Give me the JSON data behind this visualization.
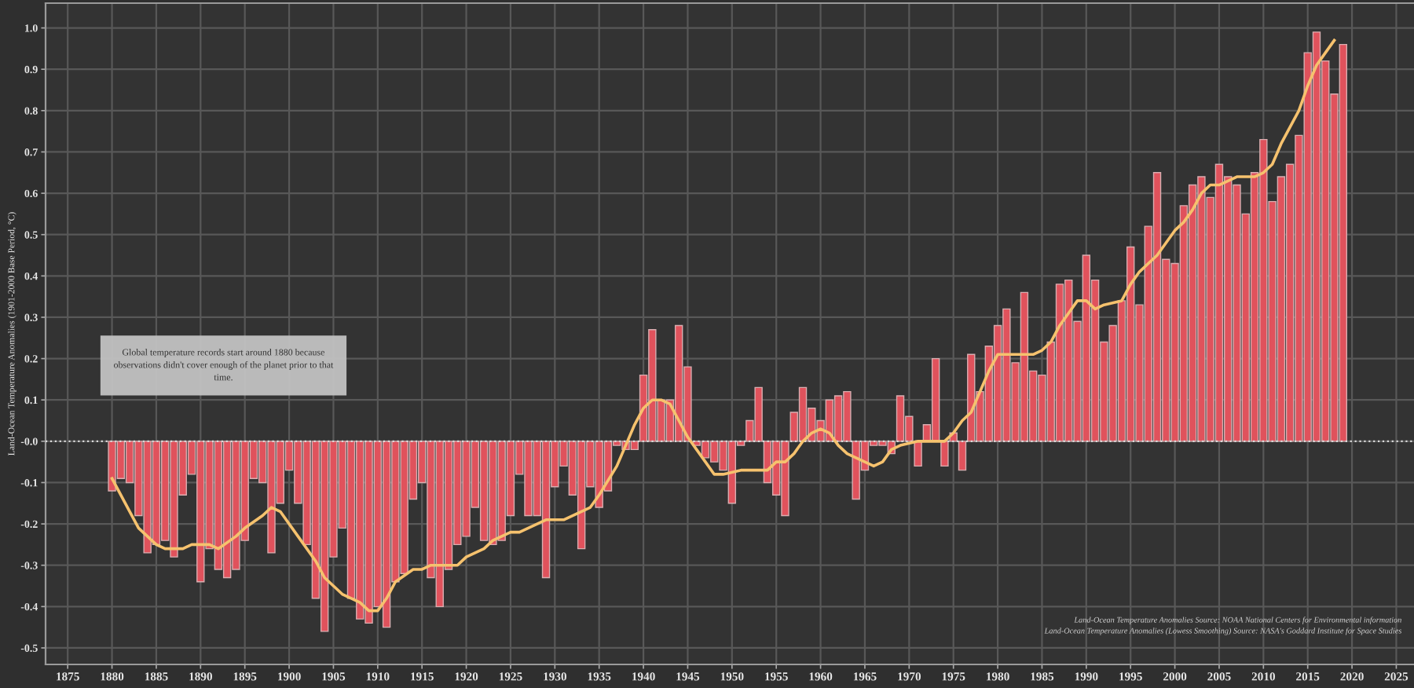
{
  "chart_data": {
    "type": "bar",
    "ylabel": "Land-Ocean Temperature Anomalies (1901-2000 Base Period, °C)",
    "x": [
      1880,
      1881,
      1882,
      1883,
      1884,
      1885,
      1886,
      1887,
      1888,
      1889,
      1890,
      1891,
      1892,
      1893,
      1894,
      1895,
      1896,
      1897,
      1898,
      1899,
      1900,
      1901,
      1902,
      1903,
      1904,
      1905,
      1906,
      1907,
      1908,
      1909,
      1910,
      1911,
      1912,
      1913,
      1914,
      1915,
      1916,
      1917,
      1918,
      1919,
      1920,
      1921,
      1922,
      1923,
      1924,
      1925,
      1926,
      1927,
      1928,
      1929,
      1930,
      1931,
      1932,
      1933,
      1934,
      1935,
      1936,
      1937,
      1938,
      1939,
      1940,
      1941,
      1942,
      1943,
      1944,
      1945,
      1946,
      1947,
      1948,
      1949,
      1950,
      1951,
      1952,
      1953,
      1954,
      1955,
      1956,
      1957,
      1958,
      1959,
      1960,
      1961,
      1962,
      1963,
      1964,
      1965,
      1966,
      1967,
      1968,
      1969,
      1970,
      1971,
      1972,
      1973,
      1974,
      1975,
      1976,
      1977,
      1978,
      1979,
      1980,
      1981,
      1982,
      1983,
      1984,
      1985,
      1986,
      1987,
      1988,
      1989,
      1990,
      1991,
      1992,
      1993,
      1994,
      1995,
      1996,
      1997,
      1998,
      1999,
      2000,
      2001,
      2002,
      2003,
      2004,
      2005,
      2006,
      2007,
      2008,
      2009,
      2010,
      2011,
      2012,
      2013,
      2014,
      2015,
      2016,
      2017,
      2018,
      2019
    ],
    "series": [
      {
        "color": "#e0525c",
        "values": [
          -0.12,
          -0.09,
          -0.1,
          -0.18,
          -0.27,
          -0.25,
          -0.24,
          -0.28,
          -0.13,
          -0.08,
          -0.34,
          -0.26,
          -0.31,
          -0.33,
          -0.31,
          -0.24,
          -0.09,
          -0.1,
          -0.27,
          -0.15,
          -0.07,
          -0.15,
          -0.25,
          -0.38,
          -0.46,
          -0.28,
          -0.21,
          -0.38,
          -0.43,
          -0.44,
          -0.4,
          -0.45,
          -0.34,
          -0.32,
          -0.14,
          -0.1,
          -0.33,
          -0.4,
          -0.31,
          -0.25,
          -0.23,
          -0.16,
          -0.24,
          -0.25,
          -0.24,
          -0.18,
          -0.08,
          -0.18,
          -0.18,
          -0.33,
          -0.11,
          -0.06,
          -0.13,
          -0.26,
          -0.11,
          -0.16,
          -0.12,
          -0.01,
          -0.02,
          -0.02,
          0.16,
          0.27,
          0.1,
          0.1,
          0.28,
          0.18,
          -0.01,
          -0.04,
          -0.05,
          -0.07,
          -0.15,
          -0.01,
          0.05,
          0.13,
          -0.1,
          -0.13,
          -0.18,
          0.07,
          0.13,
          0.08,
          0.05,
          0.1,
          0.11,
          0.12,
          -0.14,
          -0.07,
          -0.01,
          -0.01,
          -0.03,
          0.11,
          0.06,
          -0.06,
          0.04,
          0.2,
          -0.06,
          0.02,
          -0.07,
          0.21,
          0.12,
          0.23,
          0.28,
          0.32,
          0.19,
          0.36,
          0.17,
          0.16,
          0.24,
          0.38,
          0.39,
          0.29,
          0.45,
          0.39,
          0.24,
          0.28,
          0.34,
          0.47,
          0.33,
          0.52,
          0.65,
          0.44,
          0.43,
          0.57,
          0.62,
          0.64,
          0.59,
          0.67,
          0.64,
          0.62,
          0.55,
          0.65,
          0.73,
          0.58,
          0.64,
          0.67,
          0.74,
          0.94,
          0.99,
          0.92,
          0.84,
          0.96
        ]
      },
      {
        "type": "line",
        "color": "#f6c26e",
        "x": [
          1880,
          1882,
          1883,
          1885,
          1886,
          1888,
          1889,
          1891,
          1892,
          1894,
          1895,
          1897,
          1898,
          1899,
          1901,
          1903,
          1904,
          1906,
          1908,
          1909,
          1910,
          1911,
          1912,
          1914,
          1915,
          1916,
          1919,
          1920,
          1922,
          1923,
          1925,
          1926,
          1929,
          1931,
          1933,
          1934,
          1935,
          1937,
          1938,
          1939,
          1940,
          1941,
          1942,
          1943,
          1944,
          1945,
          1946,
          1947,
          1948,
          1949,
          1951,
          1954,
          1955,
          1956,
          1957,
          1958,
          1959,
          1960,
          1961,
          1962,
          1963,
          1964,
          1965,
          1966,
          1967,
          1968,
          1969,
          1971,
          1974,
          1975,
          1976,
          1977,
          1978,
          1979,
          1980,
          1982,
          1984,
          1985,
          1986,
          1987,
          1988,
          1989,
          1990,
          1991,
          1992,
          1994,
          1995,
          1996,
          1997,
          1998,
          1999,
          2000,
          2001,
          2002,
          2003,
          2004,
          2005,
          2006,
          2007,
          2009,
          2010,
          2011,
          2012,
          2013,
          2014,
          2015,
          2016,
          2017,
          2018
        ],
        "values": [
          -0.09,
          -0.17,
          -0.21,
          -0.25,
          -0.26,
          -0.26,
          -0.25,
          -0.25,
          -0.26,
          -0.23,
          -0.21,
          -0.18,
          -0.16,
          -0.17,
          -0.23,
          -0.29,
          -0.33,
          -0.37,
          -0.39,
          -0.41,
          -0.41,
          -0.38,
          -0.34,
          -0.31,
          -0.31,
          -0.3,
          -0.3,
          -0.28,
          -0.26,
          -0.24,
          -0.22,
          -0.22,
          -0.19,
          -0.19,
          -0.17,
          -0.16,
          -0.13,
          -0.06,
          -0.01,
          0.04,
          0.08,
          0.1,
          0.1,
          0.09,
          0.05,
          0.01,
          -0.02,
          -0.05,
          -0.08,
          -0.08,
          -0.07,
          -0.07,
          -0.05,
          -0.05,
          -0.03,
          0.0,
          0.02,
          0.03,
          0.02,
          -0.01,
          -0.03,
          -0.04,
          -0.05,
          -0.06,
          -0.05,
          -0.02,
          -0.01,
          0.0,
          0.0,
          0.02,
          0.05,
          0.07,
          0.12,
          0.17,
          0.21,
          0.21,
          0.21,
          0.22,
          0.24,
          0.28,
          0.31,
          0.34,
          0.34,
          0.32,
          0.33,
          0.34,
          0.38,
          0.41,
          0.43,
          0.45,
          0.48,
          0.51,
          0.53,
          0.56,
          0.6,
          0.62,
          0.62,
          0.63,
          0.64,
          0.64,
          0.65,
          0.67,
          0.72,
          0.76,
          0.8,
          0.86,
          0.91,
          0.94,
          0.97
        ]
      }
    ],
    "xlim": [
      1872.5,
      2027
    ],
    "ylim": [
      -0.54,
      1.06
    ],
    "xticks": [
      1875,
      1880,
      1885,
      1890,
      1895,
      1900,
      1905,
      1910,
      1915,
      1920,
      1925,
      1930,
      1935,
      1940,
      1945,
      1950,
      1955,
      1960,
      1965,
      1970,
      1975,
      1980,
      1985,
      1990,
      1995,
      2000,
      2005,
      2010,
      2015,
      2020,
      2025
    ],
    "yticks": [
      -0.5,
      -0.4,
      -0.3,
      -0.2,
      -0.1,
      {
        "value": 0,
        "label": "-0.0"
      },
      0.1,
      0.2,
      0.3,
      0.4,
      0.5,
      0.6,
      0.7,
      0.8,
      0.9,
      {
        "value": 1,
        "label": "1.0"
      }
    ],
    "grid": true,
    "ref_lines": [
      {
        "axis": "y",
        "value": 0,
        "line_style": "dotted",
        "color": "#d9d9d9"
      }
    ],
    "annotations": [
      "Global temperature records start around 1880 because\nobservations didn't cover enough of the planet prior to that\ntime.",
      "Land-Ocean Temperature Anomalies Source: NOAA National Centers for Environmental information",
      "Land-Ocean Temperature Anomalies (Lowess Smoothing) Source: NASA's Goddard Institute for Space Studies"
    ]
  }
}
